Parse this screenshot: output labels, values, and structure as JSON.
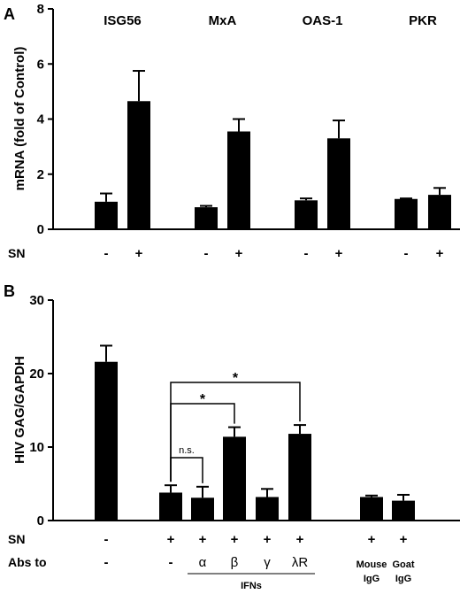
{
  "chart_data": [
    {
      "panel": "A",
      "type": "bar",
      "ylabel": "mRNA (fold of Control)",
      "ylim": [
        0,
        8
      ],
      "yticks": [
        0,
        2,
        4,
        6,
        8
      ],
      "groups": [
        "ISG56",
        "MxA",
        "OAS-1",
        "PKR"
      ],
      "row_label": "SN",
      "bars": [
        {
          "group": "ISG56",
          "sn": "-",
          "value": 1.0,
          "err": 0.3
        },
        {
          "group": "ISG56",
          "sn": "+",
          "value": 4.65,
          "err": 1.1
        },
        {
          "group": "MxA",
          "sn": "-",
          "value": 0.8,
          "err": 0.05
        },
        {
          "group": "MxA",
          "sn": "+",
          "value": 3.55,
          "err": 0.45
        },
        {
          "group": "OAS-1",
          "sn": "-",
          "value": 1.05,
          "err": 0.07
        },
        {
          "group": "OAS-1",
          "sn": "+",
          "value": 3.3,
          "err": 0.65
        },
        {
          "group": "PKR",
          "sn": "-",
          "value": 1.1,
          "err": 0.02
        },
        {
          "group": "PKR",
          "sn": "+",
          "value": 1.25,
          "err": 0.25
        }
      ]
    },
    {
      "panel": "B",
      "type": "bar",
      "ylabel": "HIV GAG/GAPDH",
      "ylim": [
        0,
        30
      ],
      "yticks": [
        0,
        10,
        20,
        30
      ],
      "rows": [
        {
          "label": "SN",
          "values": [
            "-",
            "+",
            "+",
            "+",
            "+",
            "+",
            "+",
            "+"
          ]
        },
        {
          "label": "Abs to",
          "values": [
            "-",
            "-",
            "α",
            "β",
            "γ",
            "λR",
            "",
            ""
          ]
        }
      ],
      "bottom_labels": [
        {
          "text": "IFNs"
        },
        {
          "line1": "Mouse",
          "line2": "IgG"
        },
        {
          "line1": "Goat",
          "line2": "IgG"
        }
      ],
      "bars": [
        {
          "value": 21.6,
          "err": 2.2
        },
        {
          "value": 3.8,
          "err": 1.0
        },
        {
          "value": 3.1,
          "err": 1.5
        },
        {
          "value": 11.4,
          "err": 1.3
        },
        {
          "value": 3.2,
          "err": 1.1
        },
        {
          "value": 11.8,
          "err": 1.2
        },
        {
          "value": 3.2,
          "err": 0.2
        },
        {
          "value": 2.7,
          "err": 0.8
        }
      ],
      "significance": [
        {
          "from": 1,
          "to": 2,
          "label": "n.s."
        },
        {
          "from": 1,
          "to": 3,
          "label": "*"
        },
        {
          "from": 1,
          "to": 5,
          "label": "*"
        }
      ]
    }
  ]
}
